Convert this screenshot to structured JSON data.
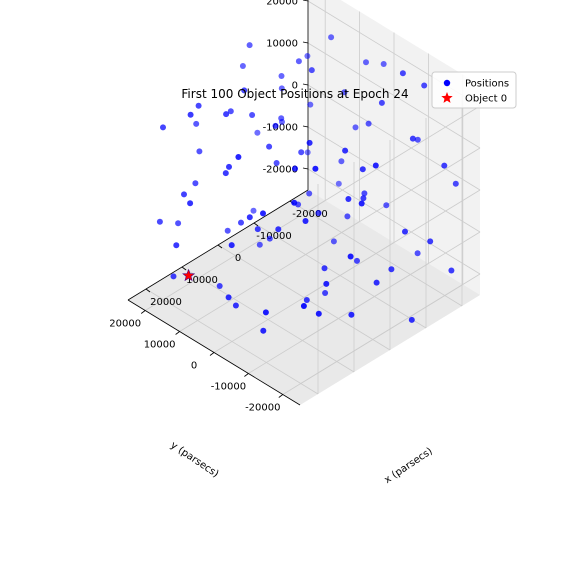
{
  "chart_data": {
    "type": "scatter",
    "title": "First 100 Object Positions at Epoch 24",
    "xlabel": "x (parsecs)",
    "ylabel": "y (parsecs)",
    "zlabel": "",
    "xlim": [
      -25000,
      25000
    ],
    "ylim": [
      -25000,
      25000
    ],
    "zlim": [
      -25000,
      25000
    ],
    "x_ticks": [
      "-20000",
      "-10000",
      "0",
      "10000",
      "20000"
    ],
    "y_ticks": [
      "-20000",
      "-10000",
      "0",
      "10000",
      "20000"
    ],
    "z_ticks": [
      "-20000",
      "-10000",
      "0",
      "10000",
      "20000"
    ],
    "grid": true,
    "legend_placement": "top-right",
    "legend": [
      {
        "label": "Positions",
        "marker": "circle",
        "color": "#0000ff"
      },
      {
        "label": "Object 0",
        "marker": "star",
        "color": "#ff0000"
      }
    ],
    "series": [
      {
        "name": "Positions",
        "color": "#0000ff",
        "points": [
          [
            -18000,
            -24000,
            -16000
          ],
          [
            -16000,
            -12000,
            26000
          ],
          [
            -5000,
            23000,
            16000
          ],
          [
            5000,
            -19000,
            -17000
          ],
          [
            -22000,
            5000,
            17000
          ],
          [
            14000,
            8000,
            22000
          ],
          [
            -8000,
            -21000,
            -3000
          ],
          [
            20000,
            -9000,
            10000
          ],
          [
            -3000,
            16000,
            -22000
          ],
          [
            9000,
            21000,
            4000
          ],
          [
            -20000,
            -3000,
            -12000
          ],
          [
            24000,
            12000,
            -6000
          ],
          [
            -12000,
            19000,
            9000
          ],
          [
            3000,
            -24000,
            20000
          ],
          [
            17000,
            2000,
            -19000
          ],
          [
            -14000,
            -17000,
            14000
          ],
          [
            7000,
            11000,
            -9000
          ],
          [
            -24000,
            15000,
            -18000
          ],
          [
            12000,
            -13000,
            6000
          ],
          [
            -6000,
            4000,
            24000
          ],
          [
            21000,
            19000,
            17000
          ],
          [
            -19000,
            9000,
            -7000
          ],
          [
            1000,
            -7000,
            -14000
          ],
          [
            -10000,
            24000,
            -3000
          ],
          [
            15000,
            -20000,
            -11000
          ],
          [
            -2000,
            -15000,
            12000
          ],
          [
            19000,
            15000,
            2000
          ],
          [
            -23000,
            -9000,
            5000
          ],
          [
            6000,
            2000,
            18000
          ],
          [
            -15000,
            7000,
            -23000
          ],
          [
            10000,
            -3000,
            -2000
          ],
          [
            -7000,
            -24000,
            -22000
          ],
          [
            23000,
            -5000,
            23000
          ],
          [
            -11000,
            13000,
            19000
          ],
          [
            4000,
            18000,
            -16000
          ],
          [
            -17000,
            -1000,
            8000
          ],
          [
            13000,
            23000,
            -12000
          ],
          [
            -1000,
            9000,
            2000
          ],
          [
            18000,
            -16000,
            15000
          ],
          [
            -21000,
            21000,
            11000
          ],
          [
            8000,
            -10000,
            21000
          ],
          [
            -9000,
            -6000,
            -18000
          ],
          [
            16000,
            6000,
            10000
          ],
          [
            -4000,
            20000,
            23000
          ],
          [
            22000,
            -23000,
            -4000
          ],
          [
            -13000,
            1000,
            -13000
          ],
          [
            2000,
            13000,
            13000
          ],
          [
            -18000,
            17000,
            3000
          ],
          [
            11000,
            -18000,
            -7000
          ],
          [
            -25000,
            3000,
            16000
          ],
          [
            7000,
            24000,
            8000
          ],
          [
            -6000,
            -11000,
            1000
          ],
          [
            20000,
            1000,
            -15000
          ],
          [
            -15000,
            -21000,
            -9000
          ],
          [
            14000,
            16000,
            20000
          ],
          [
            -3000,
            -3000,
            -24000
          ],
          [
            24000,
            8000,
            6000
          ],
          [
            -11000,
            10000,
            -11000
          ],
          [
            5000,
            -22000,
            11000
          ],
          [
            -20000,
            -14000,
            22000
          ],
          [
            9000,
            4000,
            -6000
          ],
          [
            -8000,
            15000,
            6000
          ],
          [
            18000,
            -7000,
            -20000
          ],
          [
            -23000,
            23000,
            -14000
          ],
          [
            1000,
            -13000,
            17000
          ],
          [
            -16000,
            5000,
            13000
          ],
          [
            12000,
            19000,
            -1000
          ],
          [
            -2000,
            -19000,
            -13000
          ],
          [
            21000,
            11000,
            24000
          ],
          [
            -12000,
            -5000,
            -4000
          ],
          [
            3000,
            7000,
            9000
          ],
          [
            -19000,
            12000,
            21000
          ],
          [
            16000,
            -1000,
            3000
          ],
          [
            -7000,
            22000,
            -19000
          ],
          [
            23000,
            -13000,
            -10000
          ],
          [
            -14000,
            -8000,
            18000
          ],
          [
            6000,
            15000,
            15000
          ],
          [
            -24000,
            -19000,
            -1000
          ],
          [
            10000,
            -24000,
            2000
          ],
          [
            -5000,
            1000,
            -8000
          ],
          [
            19000,
            22000,
            -8000
          ],
          [
            -10000,
            17000,
            14000
          ],
          [
            4000,
            -5000,
            -21000
          ],
          [
            -21000,
            7000,
            1000
          ],
          [
            13000,
            -11000,
            18000
          ],
          [
            -1000,
            11000,
            -17000
          ],
          [
            17000,
            4000,
            13000
          ],
          [
            -17000,
            -23000,
            9000
          ],
          [
            8000,
            9000,
            24000
          ],
          [
            -9000,
            -16000,
            -15000
          ],
          [
            22000,
            -2000,
            0
          ],
          [
            -4000,
            5000,
            5000
          ],
          [
            11000,
            13000,
            -23000
          ],
          [
            -22000,
            -10000,
            -21000
          ],
          [
            2000,
            -15000,
            7000
          ],
          [
            -13000,
            20000,
            0
          ],
          [
            15000,
            -19000,
            23000
          ],
          [
            -6000,
            8000,
            -10000
          ],
          [
            20000,
            17000,
            -18000
          ]
        ]
      },
      {
        "name": "Object 0",
        "color": "#ff0000",
        "points": [
          [
            12000,
            21000,
            -24000
          ]
        ]
      }
    ]
  }
}
